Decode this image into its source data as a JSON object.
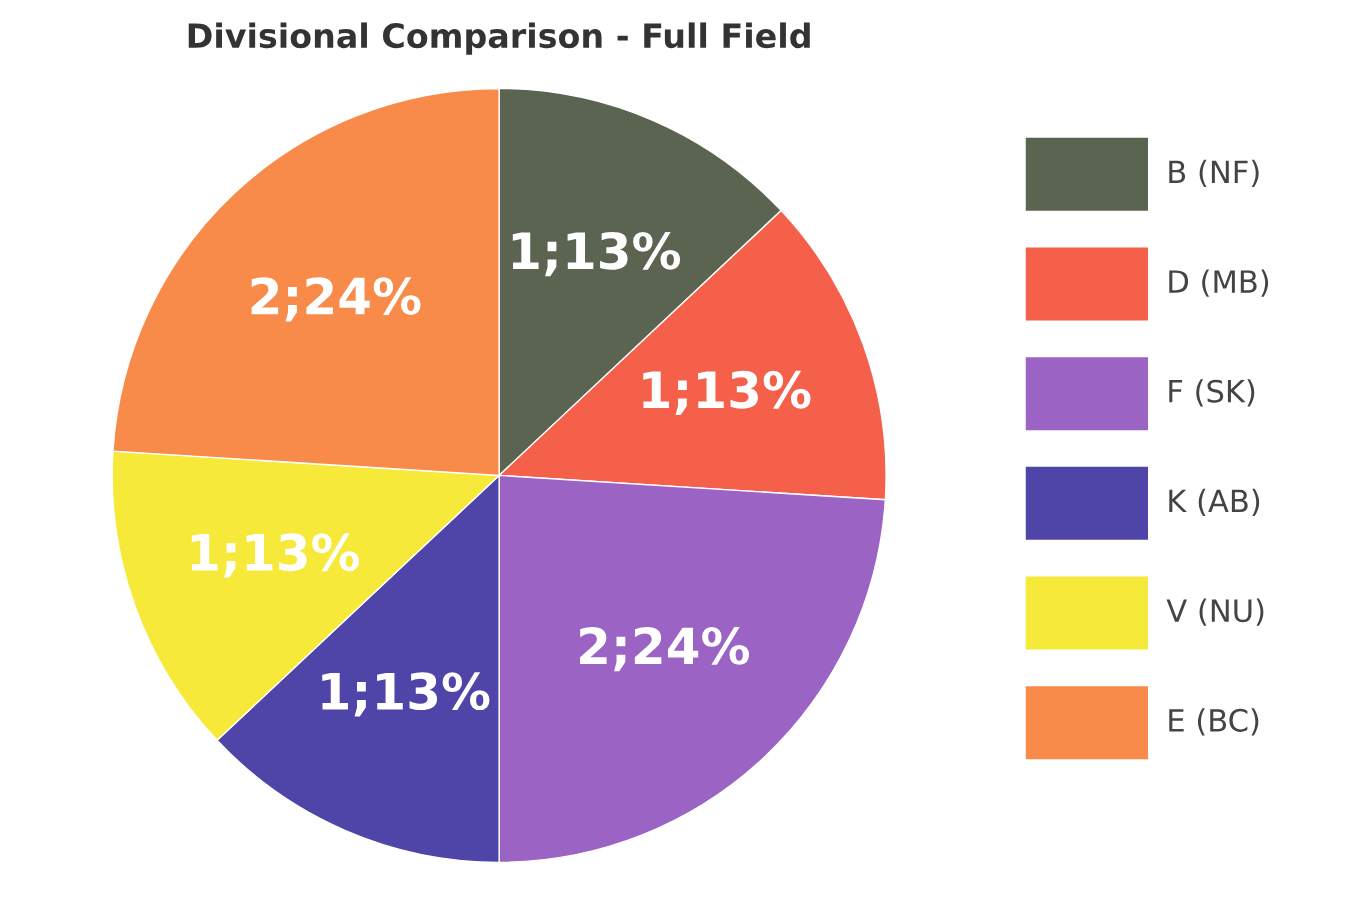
{
  "chart_data": {
    "type": "pie",
    "title": "Divisional Comparison - Full Field",
    "categories": [
      "B (NF)",
      "D (MB)",
      "F (SK)",
      "K (AB)",
      "V (NU)",
      "E (BC)"
    ],
    "values": [
      13,
      13,
      24,
      13,
      13,
      24
    ],
    "value_labels": [
      "1;13%",
      "1;13%",
      "2;24%",
      "1;13%",
      "1;13%",
      "2;24%"
    ],
    "colors": [
      "#5b6450",
      "#f5604a",
      "#9b63c4",
      "#4f44a8",
      "#f6e93a",
      "#f88b4a"
    ],
    "legend": "right"
  }
}
